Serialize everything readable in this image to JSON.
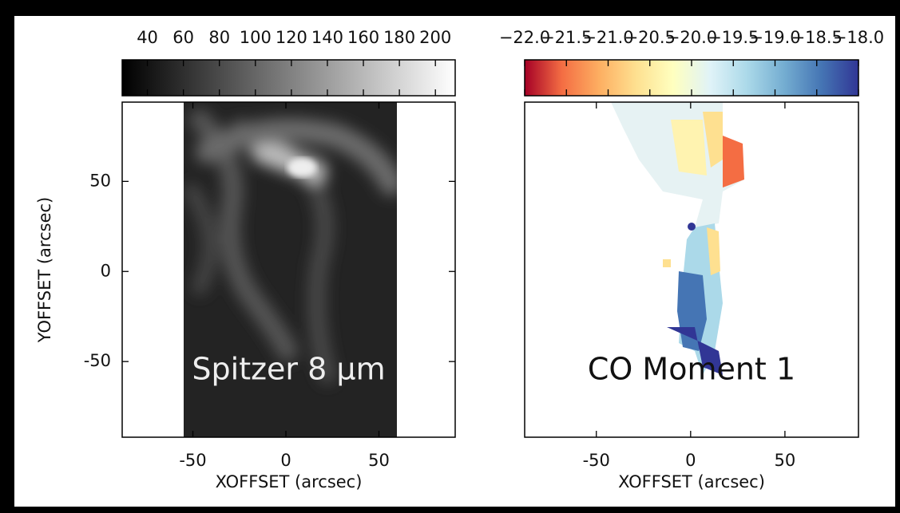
{
  "chart_data": [
    {
      "type": "image",
      "annotation": "Spitzer 8 μm",
      "xlabel": "XOFFSET (arcsec)",
      "ylabel": "YOFFSET (arcsec)",
      "xlim": [
        -88,
        91
      ],
      "ylim": [
        -92,
        94
      ],
      "xticks": [
        -50,
        0,
        50
      ],
      "yticks": [
        -50,
        0,
        50
      ],
      "colorbar": {
        "clim": [
          26,
          211
        ],
        "ticks": [
          40,
          60,
          80,
          100,
          120,
          140,
          160,
          180,
          200
        ],
        "colormap": [
          "#000000",
          "#ffffff"
        ]
      }
    },
    {
      "type": "image",
      "annotation": "CO Moment 1",
      "xlabel": "XOFFSET (arcsec)",
      "xlim": [
        -88,
        89
      ],
      "ylim": [
        -92,
        94
      ],
      "xticks": [
        -50,
        0,
        50
      ],
      "colorbar": {
        "clim": [
          -22,
          -18
        ],
        "ticks": [
          {
            "value": -22,
            "label": "−22.0"
          },
          {
            "value": -21.5,
            "label": "−21.5"
          },
          {
            "value": -21,
            "label": "−21.0"
          },
          {
            "value": -20.5,
            "label": "−20.5"
          },
          {
            "value": -20,
            "label": "−20.0"
          },
          {
            "value": -19.5,
            "label": "−19.5"
          },
          {
            "value": -19,
            "label": "−19.0"
          },
          {
            "value": -18.5,
            "label": "−18.5"
          },
          {
            "value": -18,
            "label": "−18.0"
          }
        ],
        "colormap": [
          "#a50026",
          "#f46d43",
          "#fdae61",
          "#fee090",
          "#ffffbf",
          "#e0f3f8",
          "#abd9e9",
          "#74add1",
          "#4575b4",
          "#313695"
        ]
      }
    }
  ]
}
